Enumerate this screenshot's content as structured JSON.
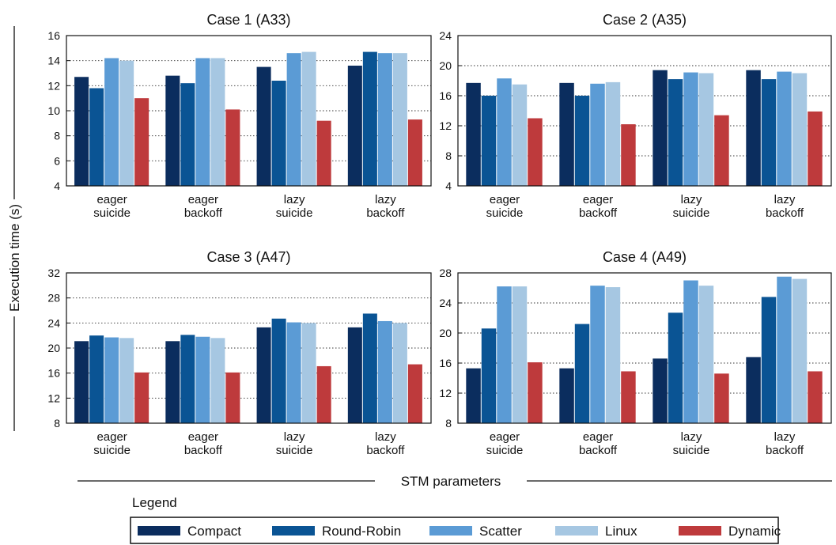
{
  "y_axis_label": "Execution time (s)",
  "x_axis_label": "STM parameters",
  "legend": {
    "title": "Legend",
    "items": [
      "Compact",
      "Round-Robin",
      "Scatter",
      "Linux",
      "Dynamic"
    ]
  },
  "colors": {
    "Compact": "#0b2d5e",
    "Round-Robin": "#0a5494",
    "Scatter": "#5b9bd5",
    "Linux": "#a6c7e2",
    "Dynamic": "#be3a3c"
  },
  "chart_data": [
    {
      "type": "bar",
      "title": "Case 1 (A33)",
      "categories": [
        [
          "eager",
          "suicide"
        ],
        [
          "eager",
          "backoff"
        ],
        [
          "lazy",
          "suicide"
        ],
        [
          "lazy",
          "backoff"
        ]
      ],
      "ylim": [
        4,
        16
      ],
      "yticks": [
        4,
        6,
        8,
        10,
        12,
        14,
        16
      ],
      "grid": true,
      "series": [
        {
          "name": "Compact",
          "values": [
            12.7,
            12.8,
            13.5,
            13.6
          ]
        },
        {
          "name": "Round-Robin",
          "values": [
            11.8,
            12.2,
            12.4,
            14.7
          ]
        },
        {
          "name": "Scatter",
          "values": [
            14.2,
            14.2,
            14.6,
            14.6
          ]
        },
        {
          "name": "Linux",
          "values": [
            14.0,
            14.2,
            14.7,
            14.6
          ]
        },
        {
          "name": "Dynamic",
          "values": [
            11.0,
            10.1,
            9.2,
            9.3
          ]
        }
      ]
    },
    {
      "type": "bar",
      "title": "Case 2 (A35)",
      "categories": [
        [
          "eager",
          "suicide"
        ],
        [
          "eager",
          "backoff"
        ],
        [
          "lazy",
          "suicide"
        ],
        [
          "lazy",
          "backoff"
        ]
      ],
      "ylim": [
        4,
        24
      ],
      "yticks": [
        4,
        8,
        12,
        16,
        20,
        24
      ],
      "grid": true,
      "series": [
        {
          "name": "Compact",
          "values": [
            17.7,
            17.7,
            19.4,
            19.4
          ]
        },
        {
          "name": "Round-Robin",
          "values": [
            16.0,
            16.0,
            18.2,
            18.2
          ]
        },
        {
          "name": "Scatter",
          "values": [
            18.3,
            17.6,
            19.1,
            19.2
          ]
        },
        {
          "name": "Linux",
          "values": [
            17.5,
            17.8,
            19.0,
            19.0
          ]
        },
        {
          "name": "Dynamic",
          "values": [
            13.0,
            12.2,
            13.4,
            13.9
          ]
        }
      ]
    },
    {
      "type": "bar",
      "title": "Case 3 (A47)",
      "categories": [
        [
          "eager",
          "suicide"
        ],
        [
          "eager",
          "backoff"
        ],
        [
          "lazy",
          "suicide"
        ],
        [
          "lazy",
          "backoff"
        ]
      ],
      "ylim": [
        8,
        32
      ],
      "yticks": [
        8,
        12,
        16,
        20,
        24,
        28,
        32
      ],
      "grid": true,
      "series": [
        {
          "name": "Compact",
          "values": [
            21.1,
            21.1,
            23.3,
            23.3
          ]
        },
        {
          "name": "Round-Robin",
          "values": [
            22.0,
            22.1,
            24.7,
            25.5
          ]
        },
        {
          "name": "Scatter",
          "values": [
            21.7,
            21.8,
            24.1,
            24.3
          ]
        },
        {
          "name": "Linux",
          "values": [
            21.6,
            21.6,
            24.0,
            24.0
          ]
        },
        {
          "name": "Dynamic",
          "values": [
            16.1,
            16.1,
            17.1,
            17.4
          ]
        }
      ]
    },
    {
      "type": "bar",
      "title": "Case 4 (A49)",
      "categories": [
        [
          "eager",
          "suicide"
        ],
        [
          "eager",
          "backoff"
        ],
        [
          "lazy",
          "suicide"
        ],
        [
          "lazy",
          "backoff"
        ]
      ],
      "ylim": [
        8,
        28
      ],
      "yticks": [
        8,
        12,
        16,
        20,
        24,
        28
      ],
      "grid": true,
      "series": [
        {
          "name": "Compact",
          "values": [
            15.3,
            15.3,
            16.6,
            16.8
          ]
        },
        {
          "name": "Round-Robin",
          "values": [
            20.6,
            21.2,
            22.7,
            24.8
          ]
        },
        {
          "name": "Scatter",
          "values": [
            26.2,
            26.3,
            27.0,
            27.5
          ]
        },
        {
          "name": "Linux",
          "values": [
            26.2,
            26.1,
            26.3,
            27.2
          ]
        },
        {
          "name": "Dynamic",
          "values": [
            16.1,
            14.9,
            14.6,
            14.9
          ]
        }
      ]
    }
  ]
}
